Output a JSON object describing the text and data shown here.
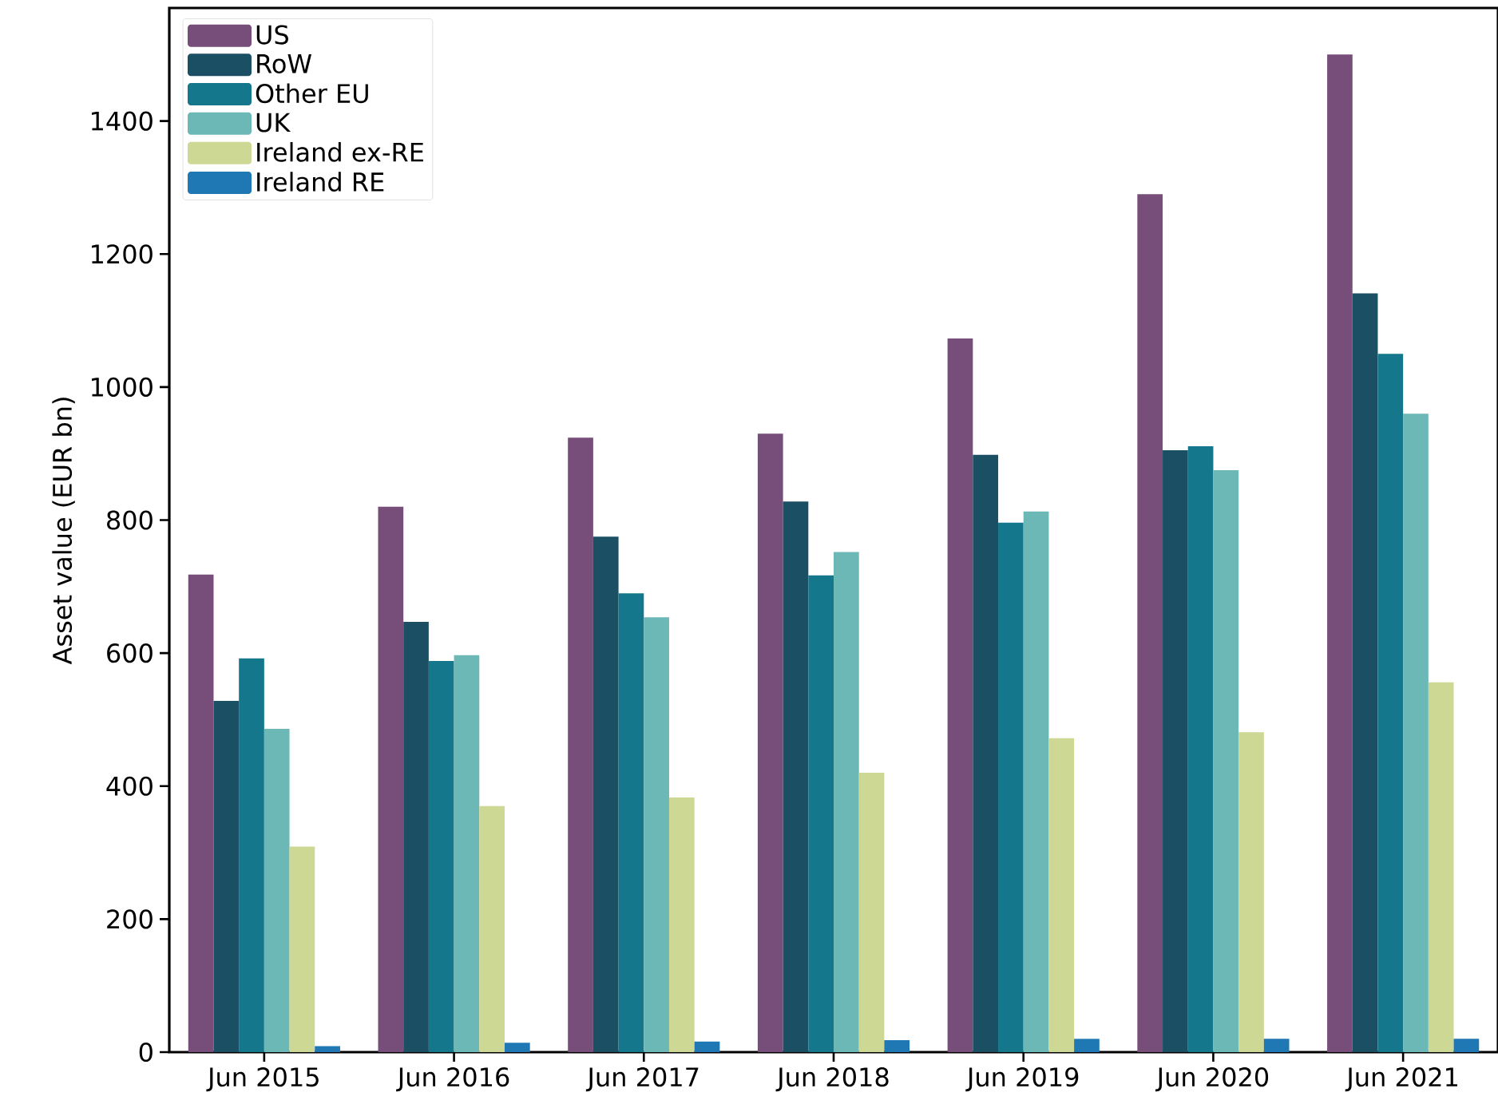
{
  "chart_data": {
    "type": "bar",
    "ylabel": "Asset value (EUR bn)",
    "categories": [
      "Jun 2015",
      "Jun 2016",
      "Jun 2017",
      "Jun 2018",
      "Jun 2019",
      "Jun 2020",
      "Jun 2021"
    ],
    "series": [
      {
        "name": "US",
        "color": "#774e7a",
        "values": [
          718,
          820,
          924,
          930,
          1073,
          1290,
          1500
        ]
      },
      {
        "name": "RoW",
        "color": "#1b4f63",
        "values": [
          528,
          647,
          775,
          828,
          898,
          905,
          1141
        ]
      },
      {
        "name": "Other EU",
        "color": "#15778c",
        "values": [
          592,
          588,
          690,
          717,
          796,
          911,
          1050
        ]
      },
      {
        "name": "UK",
        "color": "#6cb8b6",
        "values": [
          486,
          597,
          654,
          752,
          813,
          875,
          960
        ]
      },
      {
        "name": "Ireland ex-RE",
        "color": "#cdd894",
        "values": [
          309,
          370,
          383,
          420,
          472,
          481,
          556
        ]
      },
      {
        "name": "Ireland RE",
        "color": "#1f77b4",
        "values": [
          9,
          14,
          16,
          18,
          20,
          20,
          20
        ]
      }
    ],
    "ylim": [
      0,
      1570
    ],
    "yticks": [
      0,
      200,
      400,
      600,
      800,
      1000,
      1200,
      1400
    ],
    "legend": "top left",
    "grid": false
  }
}
